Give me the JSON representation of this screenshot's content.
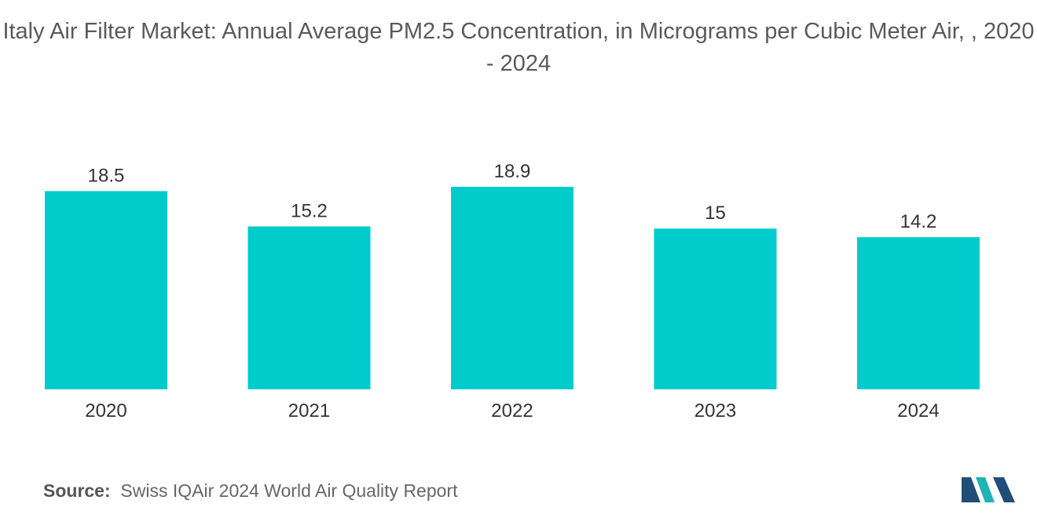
{
  "chart_data": {
    "type": "bar",
    "title": "Italy Air Filter Market: Annual Average PM2.5 Concentration, in Micrograms per Cubic Meter Air, , 2020 - 2024",
    "categories": [
      "2020",
      "2021",
      "2022",
      "2023",
      "2024"
    ],
    "values": [
      18.5,
      15.2,
      18.9,
      15,
      14.2
    ],
    "value_labels": [
      "18.5",
      "15.2",
      "18.9",
      "15",
      "14.2"
    ],
    "xlabel": "",
    "ylabel": "",
    "ylim": [
      0,
      18.9
    ],
    "grid": false,
    "legend": "none",
    "bar_color": "#00CCCC"
  },
  "footer": {
    "source_label": "Source:",
    "source_text": "Swiss IQAir 2024 World Air Quality Report"
  },
  "colors": {
    "logo_dark": "#1f4e79",
    "logo_teal": "#1fb3b3"
  }
}
